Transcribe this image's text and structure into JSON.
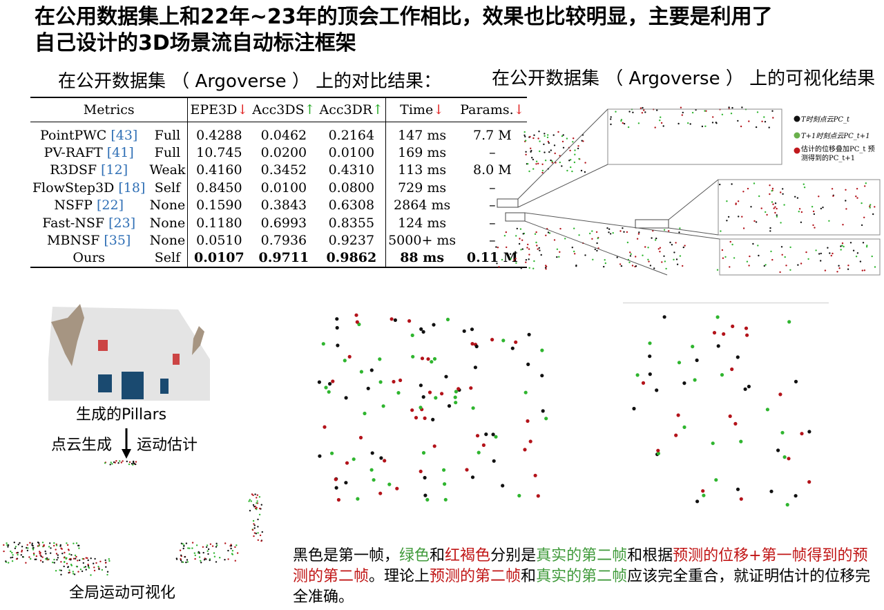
{
  "title": "在公用数据集上和22年~23年的顶会工作相比，效果也比较明显，主要是利用了自己设计的3D场景流自动标注框架",
  "table_section": {
    "heading": "在公开数据集 （ Argoverse ） 上的对比结果：",
    "headers": {
      "metrics": "Metrics",
      "epe": "EPE3D",
      "epe_arrow": "↓",
      "acc3ds": "Acc3DS",
      "acc3ds_arrow": "↑",
      "acc3dr": "Acc3DR",
      "acc3dr_arrow": "↑",
      "time": "Time",
      "time_arrow": "↓",
      "params": "Params.",
      "params_arrow": "↓"
    },
    "rows": [
      {
        "name": "PointPWC ",
        "cite": "[43]",
        "sup": "Full",
        "epe": "0.4288",
        "acc3ds": "0.0462",
        "acc3dr": "0.2164",
        "time": "147 ms",
        "params": "7.7 M"
      },
      {
        "name": "PV-RAFT ",
        "cite": "[41]",
        "sup": "Full",
        "epe": "10.745",
        "acc3ds": "0.0200",
        "acc3dr": "0.0100",
        "time": "169 ms",
        "params": "–"
      },
      {
        "name": "R3DSF ",
        "cite": "[12]",
        "sup": "Weak",
        "epe": "0.4160",
        "acc3ds": "0.3452",
        "acc3dr": "0.4310",
        "time": "113 ms",
        "params": "8.0 M"
      },
      {
        "name": "FlowStep3D ",
        "cite": "[18]",
        "sup": "Self",
        "epe": "0.8450",
        "acc3ds": "0.0100",
        "acc3dr": "0.0800",
        "time": "729 ms",
        "params": "–"
      },
      {
        "name": "NSFP ",
        "cite": "[22]",
        "sup": "None",
        "epe": "0.1590",
        "acc3ds": "0.3843",
        "acc3dr": "0.6308",
        "time": "2864 ms",
        "params": "–"
      },
      {
        "name": "Fast-NSF ",
        "cite": "[23]",
        "sup": "None",
        "epe": "0.1180",
        "acc3ds": "0.6993",
        "acc3dr": "0.8355",
        "time": "124 ms",
        "params": "–"
      },
      {
        "name": "MBNSF ",
        "cite": "[35]",
        "sup": "None",
        "epe": "0.0510",
        "acc3ds": "0.7936",
        "acc3dr": "0.9237",
        "time": "5000+ ms",
        "params": "–"
      }
    ],
    "ours": {
      "name": "Ours",
      "sup": "Self",
      "epe": "0.0107",
      "acc3ds": "0.9711",
      "acc3dr": "0.9862",
      "time": "88 ms",
      "params": "0.11 M"
    }
  },
  "viz_section": {
    "heading": "在公开数据集 （ Argoverse ） 上的可视化结果",
    "legend": [
      {
        "label": "T时刻点云PC_t",
        "color": "#111111"
      },
      {
        "label": "T+1时刻点云PC_t+1",
        "color": "#6ab04c"
      },
      {
        "label": "估计的位移叠加PC_t 预测得到的PC_t+1",
        "color": "#c0181c"
      }
    ]
  },
  "pipeline": {
    "pillars_caption": "生成的Pillars",
    "left_label": "点云生成",
    "right_label": "运动估计",
    "global_caption": "全局运动可视化"
  },
  "description": {
    "p1": "黑色是第一帧，",
    "green_word": "绿色",
    "p2": "和",
    "red_word": "红褐色",
    "p3": "分别是",
    "real2": "真实的第二帧",
    "p4": "和根据",
    "pred": "预测的位移+第一帧得到的预测的第二帧",
    "p5": "。理论上",
    "pred2": "预测的第二帧",
    "p6": "和",
    "real2b": "真实的第二帧",
    "p7": "应该完全重合，就证明估计的位移完全准确。"
  },
  "colors": {
    "black_point": "#111111",
    "green_point": "#2fb52f",
    "red_point": "#b3131a"
  }
}
